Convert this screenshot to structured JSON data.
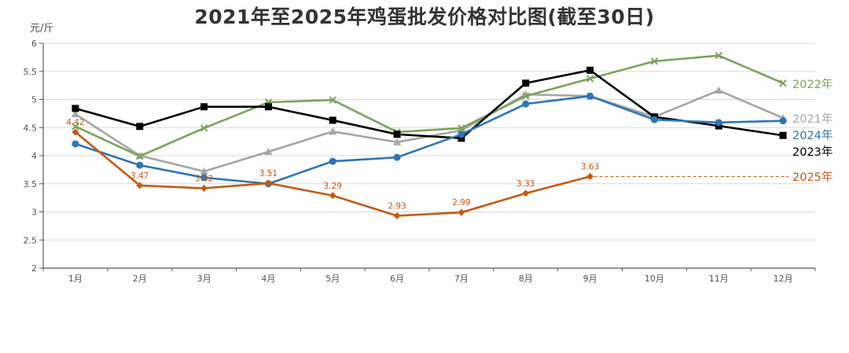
{
  "chart_data": {
    "type": "line",
    "title": "2021年至2025年鸡蛋批发价格对比图(截至30日)",
    "xlabel": "",
    "ylabel": "元/斤",
    "ylim": [
      2,
      6
    ],
    "yticks": [
      "2",
      "2.5",
      "3",
      "3.5",
      "4",
      "4.5",
      "5",
      "5.5",
      "6"
    ],
    "grid": true,
    "legend_position": "right (inline end labels)",
    "categories": [
      "1月",
      "2月",
      "3月",
      "4月",
      "5月",
      "6月",
      "7月",
      "8月",
      "9月",
      "10月",
      "11月",
      "12月"
    ],
    "series": [
      {
        "name": "2021年",
        "color": "#a6a6a6",
        "marker": "triangle",
        "values": [
          4.74,
          4.0,
          3.72,
          4.07,
          4.43,
          4.24,
          4.45,
          5.09,
          5.06,
          4.69,
          5.16,
          4.67
        ]
      },
      {
        "name": "2022年",
        "color": "#7aa35c",
        "marker": "x",
        "values": [
          4.52,
          3.99,
          4.49,
          4.95,
          4.99,
          4.42,
          4.49,
          5.06,
          5.37,
          5.68,
          5.78,
          5.29
        ]
      },
      {
        "name": "2023年",
        "color": "#000000",
        "marker": "square",
        "values": [
          4.84,
          4.52,
          4.87,
          4.87,
          4.63,
          4.38,
          4.31,
          5.29,
          5.52,
          4.69,
          4.53,
          4.36
        ]
      },
      {
        "name": "2024年",
        "color": "#2e75b6",
        "marker": "circle",
        "values": [
          4.21,
          3.83,
          3.61,
          3.5,
          3.9,
          3.97,
          4.38,
          4.92,
          5.06,
          4.64,
          4.59,
          4.62
        ]
      },
      {
        "name": "2025年",
        "color": "#c55a11",
        "marker": "diamond",
        "values": [
          4.42,
          3.47,
          3.42,
          3.51,
          3.29,
          2.93,
          2.99,
          3.33,
          3.63,
          null,
          null,
          null
        ],
        "data_labels": [
          "4.42",
          "3.47",
          "3.42",
          "3.51",
          "3.29",
          "2.93",
          "2.99",
          "3.33",
          "3.63"
        ]
      }
    ],
    "annotations": [
      "2025年 dashed leader line from 9月 (3.63) to label"
    ]
  }
}
